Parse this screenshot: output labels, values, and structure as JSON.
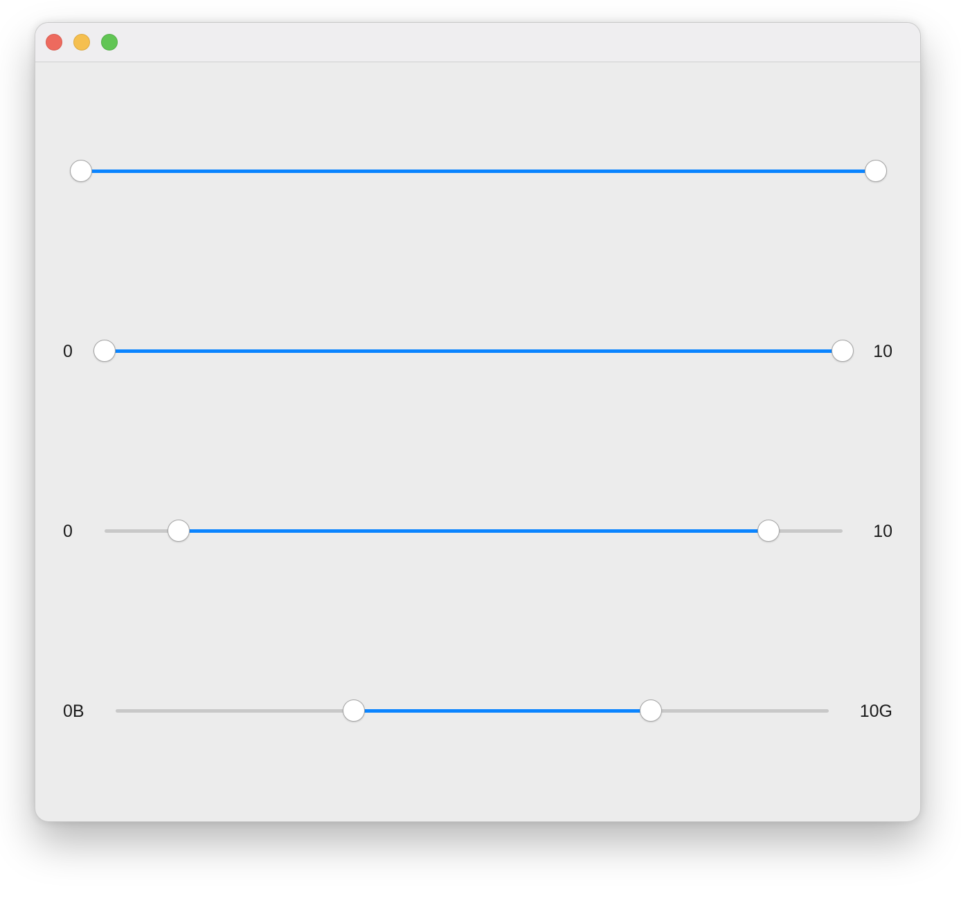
{
  "window": {
    "controls": {
      "close": "close-button",
      "minimize": "minimize-button",
      "zoom": "zoom-button"
    }
  },
  "colors": {
    "accent": "#0a84ff",
    "track": "#c8c8c8",
    "window_background": "#ececec"
  },
  "sliders": [
    {
      "min_label": "",
      "max_label": "",
      "min": 0,
      "max": 10,
      "low": 0,
      "high": 10
    },
    {
      "min_label": "0",
      "max_label": "10",
      "min": 0,
      "max": 10,
      "low": 0,
      "high": 10
    },
    {
      "min_label": "0",
      "max_label": "10",
      "min": 0,
      "max": 10,
      "low": 1,
      "high": 9
    },
    {
      "min_label": "0B",
      "max_label": "10G",
      "min": 0,
      "max": 10,
      "low": 3.34,
      "high": 7.5
    }
  ]
}
